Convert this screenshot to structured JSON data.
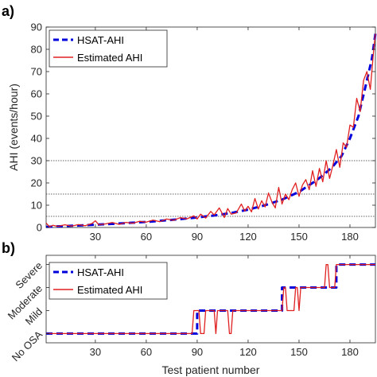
{
  "chart_data": [
    {
      "panel_label": "a)",
      "type": "line",
      "ylabel": "AHI (events/hour)",
      "xlabel": "",
      "xlim": [
        1,
        195
      ],
      "ylim": [
        0,
        90
      ],
      "xticks": [
        30,
        60,
        90,
        120,
        150,
        180
      ],
      "yticks": [
        0,
        10,
        20,
        30,
        40,
        50,
        60,
        70,
        80,
        90
      ],
      "xtick_labels": [
        "30",
        "60",
        "90",
        "120",
        "150",
        "180"
      ],
      "ytick_labels": [
        "0",
        "10",
        "20",
        "30",
        "40",
        "50",
        "60",
        "70",
        "80",
        "90"
      ],
      "reference_lines_y": [
        5,
        15,
        30
      ],
      "legend_position": "top-left",
      "series": [
        {
          "name": "HSAT-AHI",
          "color": "#0000dd",
          "style": "dashed",
          "x": [
            1,
            20,
            40,
            60,
            75,
            90,
            100,
            110,
            120,
            130,
            140,
            150,
            155,
            160,
            165,
            170,
            175,
            180,
            185,
            190,
            193,
            195
          ],
          "y": [
            0.3,
            0.9,
            1.6,
            2.5,
            3.4,
            4.5,
            5.4,
            6.5,
            8.0,
            10.0,
            12.5,
            16.0,
            18.5,
            21.0,
            24.0,
            27.5,
            32.0,
            40.0,
            50.0,
            66.0,
            76.0,
            87.0
          ]
        },
        {
          "name": "Estimated AHI",
          "color": "#e02020",
          "style": "solid",
          "x": [
            1,
            3,
            5,
            8,
            12,
            16,
            20,
            24,
            28,
            30,
            32,
            36,
            40,
            44,
            48,
            52,
            56,
            60,
            64,
            68,
            72,
            76,
            80,
            84,
            88,
            90,
            92,
            95,
            98,
            100,
            103,
            106,
            108,
            110,
            113,
            116,
            118,
            120,
            122,
            124,
            126,
            128,
            130,
            132,
            134,
            136,
            138,
            140,
            142,
            144,
            146,
            148,
            150,
            152,
            154,
            156,
            158,
            160,
            162,
            164,
            166,
            168,
            170,
            172,
            174,
            176,
            178,
            180,
            182,
            184,
            186,
            188,
            190,
            192,
            194,
            195
          ],
          "y": [
            2.0,
            0.3,
            1.0,
            0.5,
            1.2,
            0.6,
            1.3,
            0.8,
            1.8,
            3.0,
            1.2,
            1.6,
            2.2,
            1.4,
            2.3,
            1.9,
            2.8,
            2.4,
            3.3,
            2.6,
            3.8,
            3.2,
            4.4,
            3.9,
            5.2,
            3.8,
            6.0,
            4.2,
            7.2,
            5.6,
            8.8,
            4.5,
            8.5,
            6.0,
            6.5,
            10.5,
            7.4,
            9.5,
            7.0,
            13.0,
            8.3,
            12.0,
            9.2,
            15.5,
            11.5,
            8.8,
            18.0,
            10.5,
            15.0,
            12.5,
            17.0,
            20.0,
            14.0,
            19.0,
            21.5,
            17.0,
            25.5,
            18.5,
            26.5,
            20.5,
            30.0,
            22.0,
            28.0,
            35.0,
            27.0,
            38.0,
            36.0,
            46.0,
            45.0,
            58.0,
            52.0,
            66.0,
            70.0,
            62.0,
            80.0,
            87.0
          ]
        }
      ]
    },
    {
      "panel_label": "b)",
      "type": "line",
      "ylabel": "",
      "xlabel": "Test patient number",
      "xlim": [
        1,
        195
      ],
      "ylim": [
        -0.4,
        3.4
      ],
      "xticks": [
        30,
        60,
        90,
        120,
        150,
        180
      ],
      "xtick_labels": [
        "30",
        "60",
        "90",
        "120",
        "150",
        "180"
      ],
      "category_ticks": [
        "No OSA",
        "Mild",
        "Moderate",
        "Severe"
      ],
      "legend_position": "top-left",
      "series": [
        {
          "name": "HSAT-AHI",
          "color": "#0000dd",
          "style": "dashed",
          "x": [
            1,
            90,
            90,
            140,
            140,
            172,
            172,
            195
          ],
          "y": [
            0,
            0,
            1,
            1,
            2,
            2,
            3,
            3
          ]
        },
        {
          "name": "Estimated AHI",
          "color": "#e02020",
          "style": "solid",
          "x": [
            1,
            87,
            88,
            91,
            92,
            94,
            95,
            100,
            101,
            102,
            103,
            108,
            109,
            110,
            111,
            140,
            141,
            142,
            143,
            147,
            148,
            149,
            150,
            151,
            152,
            154,
            155,
            165,
            166,
            167,
            168,
            171,
            172,
            195
          ],
          "y": [
            0,
            0,
            1,
            1,
            0,
            0,
            1,
            1,
            0,
            1,
            1,
            1,
            0,
            0,
            1,
            1,
            2,
            2,
            1,
            1,
            2,
            2,
            1,
            2,
            2,
            2,
            2,
            2,
            3,
            3,
            2,
            2,
            3,
            3
          ]
        }
      ]
    }
  ]
}
